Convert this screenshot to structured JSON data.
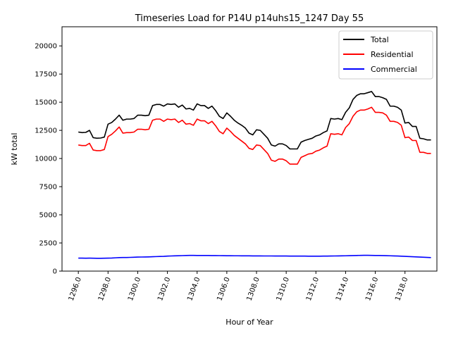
{
  "chart_data": {
    "type": "line",
    "title": "Timeseries Load for P14U p14uhs15_1247  Day 55",
    "xlabel": "Hour of Year",
    "ylabel": "kW total",
    "xlim": [
      1294.9,
      1320.15
    ],
    "ylim": [
      0,
      21700
    ],
    "x_ticks": [
      1296,
      1298,
      1300,
      1302,
      1304,
      1306,
      1308,
      1310,
      1312,
      1314,
      1316,
      1318
    ],
    "x_tick_labels": [
      "1296.0",
      "1298.0",
      "1300.0",
      "1302.0",
      "1304.0",
      "1306.0",
      "1308.0",
      "1310.0",
      "1312.0",
      "1314.0",
      "1316.0",
      "1318.0"
    ],
    "y_ticks": [
      0,
      2500,
      5000,
      7500,
      10000,
      12500,
      15000,
      17500,
      20000
    ],
    "y_tick_labels": [
      "0",
      "2500",
      "5000",
      "7500",
      "10000",
      "12500",
      "15000",
      "17500",
      "20000"
    ],
    "legend_position": "top-right",
    "x_start": 1296,
    "x_step": 0.25,
    "series": [
      {
        "name": "Total",
        "color": "#000000",
        "values": [
          12350,
          12300,
          12320,
          12500,
          11850,
          11800,
          11820,
          11900,
          13050,
          13200,
          13500,
          13850,
          13400,
          13500,
          13500,
          13550,
          13850,
          13850,
          13800,
          13850,
          14700,
          14800,
          14800,
          14650,
          14850,
          14800,
          14850,
          14550,
          14750,
          14400,
          14450,
          14300,
          14850,
          14700,
          14700,
          14450,
          14650,
          14250,
          13750,
          13550,
          14050,
          13750,
          13400,
          13150,
          12950,
          12700,
          12250,
          12100,
          12550,
          12500,
          12150,
          11800,
          11200,
          11100,
          11300,
          11300,
          11150,
          10850,
          10850,
          10850,
          11450,
          11600,
          11700,
          11800,
          12000,
          12100,
          12300,
          12450,
          13550,
          13500,
          13550,
          13450,
          14100,
          14500,
          15250,
          15600,
          15750,
          15750,
          15850,
          15950,
          15500,
          15500,
          15400,
          15250,
          14650,
          14650,
          14550,
          14300,
          13150,
          13200,
          12850,
          12850,
          11800,
          11750,
          11650,
          11650
        ]
      },
      {
        "name": "Residential",
        "color": "#ff0000",
        "values": [
          11200,
          11150,
          11150,
          11350,
          10750,
          10700,
          10700,
          10800,
          11950,
          12150,
          12450,
          12800,
          12250,
          12300,
          12300,
          12350,
          12600,
          12600,
          12550,
          12600,
          13400,
          13500,
          13500,
          13300,
          13500,
          13450,
          13500,
          13200,
          13400,
          13050,
          13100,
          12950,
          13500,
          13350,
          13350,
          13100,
          13300,
          12900,
          12400,
          12200,
          12700,
          12400,
          12050,
          11800,
          11550,
          11300,
          10900,
          10800,
          11200,
          11150,
          10800,
          10450,
          9850,
          9750,
          9950,
          9950,
          9800,
          9500,
          9500,
          9500,
          10100,
          10250,
          10400,
          10450,
          10650,
          10750,
          10950,
          11100,
          12200,
          12150,
          12200,
          12100,
          12750,
          13100,
          13750,
          14150,
          14300,
          14300,
          14400,
          14550,
          14100,
          14100,
          14050,
          13850,
          13300,
          13300,
          13200,
          12950,
          11850,
          11900,
          11600,
          11600,
          10550,
          10550,
          10450,
          10450
        ]
      },
      {
        "name": "Commercial",
        "color": "#0000ff",
        "values": [
          1150,
          1152,
          1148,
          1150,
          1145,
          1140,
          1140,
          1145,
          1150,
          1160,
          1180,
          1200,
          1210,
          1210,
          1220,
          1230,
          1245,
          1250,
          1255,
          1265,
          1280,
          1290,
          1300,
          1310,
          1330,
          1345,
          1355,
          1365,
          1375,
          1385,
          1395,
          1395,
          1390,
          1390,
          1390,
          1385,
          1380,
          1380,
          1375,
          1370,
          1365,
          1365,
          1360,
          1360,
          1355,
          1355,
          1355,
          1350,
          1350,
          1350,
          1345,
          1345,
          1345,
          1340,
          1340,
          1340,
          1340,
          1335,
          1335,
          1330,
          1330,
          1330,
          1325,
          1325,
          1325,
          1325,
          1330,
          1335,
          1340,
          1345,
          1350,
          1355,
          1360,
          1370,
          1380,
          1390,
          1395,
          1400,
          1400,
          1395,
          1390,
          1385,
          1380,
          1370,
          1360,
          1350,
          1340,
          1325,
          1310,
          1295,
          1280,
          1265,
          1245,
          1230,
          1215,
          1200
        ]
      }
    ]
  }
}
